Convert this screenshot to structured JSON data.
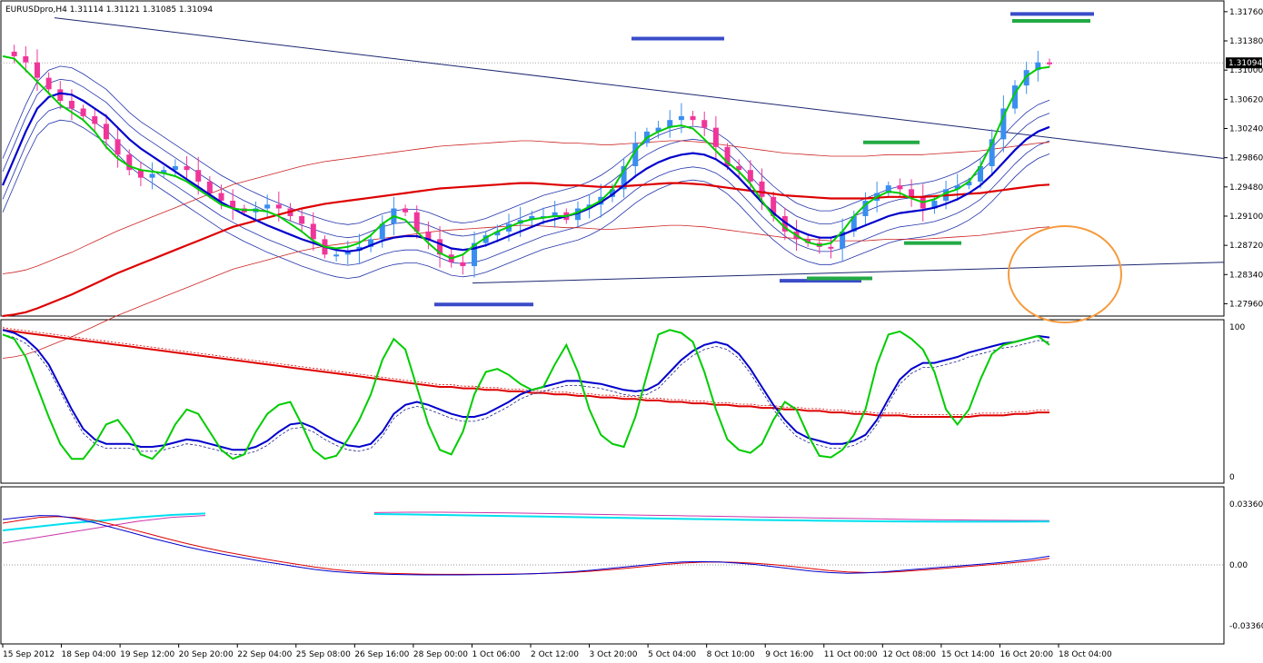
{
  "chart_data": [
    {
      "panel": "price",
      "type": "candlestick",
      "title": "EURUSDpro,H4  1.31114  1.31121  1.31085  1.31094",
      "current_price_label": "1.31094",
      "y_range": [
        1.278,
        1.319
      ],
      "y_ticks": [
        "1.31760",
        "1.31380",
        "1.31000",
        "1.30620",
        "1.30240",
        "1.29860",
        "1.29480",
        "1.29100",
        "1.28720",
        "1.28340",
        "1.27960"
      ],
      "x_tick_labels": [
        "15 Sep 2012",
        "18 Sep 04:00",
        "19 Sep 12:00",
        "20 Sep 20:00",
        "22 Sep 04:00",
        "25 Sep 08:00",
        "26 Sep 16:00",
        "28 Sep 00:00",
        "1 Oct 06:00",
        "2 Oct 12:00",
        "3 Oct 20:00",
        "5 Oct 04:00",
        "8 Oct 10:00",
        "9 Oct 16:00",
        "11 Oct 00:00",
        "12 Oct 08:00",
        "15 Oct 14:00",
        "16 Oct 20:00",
        "18 Oct 04:00"
      ],
      "close_path": [
        1.3124,
        1.3118,
        1.311,
        1.309,
        1.3075,
        1.306,
        1.305,
        1.304,
        1.303,
        1.301,
        1.299,
        1.297,
        1.296,
        1.2965,
        1.297,
        1.2975,
        1.297,
        1.2955,
        1.294,
        1.293,
        1.292,
        1.2915,
        1.292,
        1.2925,
        1.292,
        1.291,
        1.29,
        1.288,
        1.286,
        1.286,
        1.2865,
        1.287,
        1.288,
        1.29,
        1.292,
        1.2915,
        1.289,
        1.288,
        1.286,
        1.285,
        1.2845,
        1.2875,
        1.2885,
        1.289,
        1.29,
        1.2905,
        1.291,
        1.291,
        1.2915,
        1.2905,
        1.292,
        1.2925,
        1.2935,
        1.2945,
        1.2975,
        1.3005,
        1.302,
        1.3025,
        1.3035,
        1.304,
        1.3035,
        1.3025,
        1.3,
        1.2975,
        1.297,
        1.2955,
        1.2935,
        1.291,
        1.289,
        1.288,
        1.2875,
        1.287,
        1.2868,
        1.289,
        1.291,
        1.293,
        1.294,
        1.295,
        1.2945,
        1.2935,
        1.292,
        1.293,
        1.2945,
        1.295,
        1.2955,
        1.2975,
        1.301,
        1.305,
        1.308,
        1.31,
        1.311,
        1.3109
      ],
      "series": [
        {
          "name": "",
          "color": "#00cc00",
          "values": [
            1.3118,
            1.3115,
            1.31,
            1.3085,
            1.307,
            1.3055,
            1.3045,
            1.3035,
            1.302,
            1.3,
            1.2985,
            1.2975,
            1.297,
            1.2968,
            1.2966,
            1.2962,
            1.2955,
            1.2945,
            1.2935,
            1.2925,
            1.292,
            1.2918,
            1.2918,
            1.2916,
            1.291,
            1.29,
            1.289,
            1.2878,
            1.287,
            1.2868,
            1.287,
            1.2875,
            1.2885,
            1.29,
            1.291,
            1.2905,
            1.289,
            1.2875,
            1.2862,
            1.2855,
            1.286,
            1.2872,
            1.2882,
            1.289,
            1.2896,
            1.2902,
            1.2906,
            1.2908,
            1.291,
            1.291,
            1.2915,
            1.2922,
            1.293,
            1.2945,
            1.297,
            1.2995,
            1.3012,
            1.302,
            1.3026,
            1.3028,
            1.3024,
            1.301,
            1.2995,
            1.298,
            1.2968,
            1.2952,
            1.293,
            1.291,
            1.2895,
            1.2885,
            1.2876,
            1.2872,
            1.2875,
            1.289,
            1.291,
            1.2925,
            1.2935,
            1.2942,
            1.294,
            1.2933,
            1.2928,
            1.2932,
            1.294,
            1.2945,
            1.2955,
            1.2975,
            1.3005,
            1.304,
            1.307,
            1.3092,
            1.3102,
            1.3104
          ]
        },
        {
          "name": "",
          "color": "#0000cc",
          "values": [
            1.295,
            1.2985,
            1.302,
            1.305,
            1.3065,
            1.307,
            1.3068,
            1.306,
            1.305,
            1.304,
            1.3025,
            1.301,
            1.2998,
            1.2988,
            1.2978,
            1.2968,
            1.2958,
            1.2948,
            1.2938,
            1.2928,
            1.292,
            1.2912,
            1.2905,
            1.2898,
            1.2892,
            1.2886,
            1.288,
            1.2875,
            1.287,
            1.2866,
            1.2864,
            1.2866,
            1.2872,
            1.2878,
            1.2882,
            1.2884,
            1.2884,
            1.288,
            1.2874,
            1.2868,
            1.2866,
            1.2868,
            1.2872,
            1.2878,
            1.2884,
            1.289,
            1.2896,
            1.2902,
            1.2906,
            1.291,
            1.2914,
            1.292,
            1.2928,
            1.2938,
            1.295,
            1.2962,
            1.2972,
            1.298,
            1.2986,
            1.299,
            1.2992,
            1.299,
            1.2984,
            1.2974,
            1.296,
            1.2944,
            1.2928,
            1.2914,
            1.2902,
            1.2892,
            1.2886,
            1.2882,
            1.2882,
            1.2886,
            1.2892,
            1.2898,
            1.2904,
            1.291,
            1.2914,
            1.2916,
            1.2918,
            1.2921,
            1.2926,
            1.2932,
            1.294,
            1.295,
            1.2964,
            1.298,
            1.2996,
            1.301,
            1.302,
            1.3026
          ]
        },
        {
          "name": "",
          "color": "#dd0000",
          "values": [
            1.278,
            1.2782,
            1.2785,
            1.279,
            1.2796,
            1.2802,
            1.2808,
            1.2815,
            1.2822,
            1.2829,
            1.2836,
            1.2842,
            1.2848,
            1.2854,
            1.286,
            1.2866,
            1.2872,
            1.2878,
            1.2884,
            1.289,
            1.2896,
            1.29,
            1.2904,
            1.2908,
            1.2912,
            1.2916,
            1.292,
            1.2923,
            1.2926,
            1.2928,
            1.293,
            1.2932,
            1.2934,
            1.2936,
            1.2938,
            1.294,
            1.2942,
            1.2944,
            1.2946,
            1.2947,
            1.2948,
            1.2949,
            1.295,
            1.2951,
            1.2952,
            1.2953,
            1.2953,
            1.2952,
            1.2951,
            1.295,
            1.295,
            1.2949,
            1.2948,
            1.2948,
            1.2949,
            1.295,
            1.2951,
            1.2952,
            1.2953,
            1.2953,
            1.2952,
            1.2951,
            1.2949,
            1.2947,
            1.2945,
            1.2943,
            1.2941,
            1.2939,
            1.2937,
            1.2936,
            1.2935,
            1.2934,
            1.2933,
            1.2933,
            1.2933,
            1.2933,
            1.2934,
            1.2935,
            1.2935,
            1.2935,
            1.2935,
            1.2936,
            1.2937,
            1.2938,
            1.2939,
            1.294,
            1.2942,
            1.2944,
            1.2946,
            1.2948,
            1.295,
            1.2951
          ]
        }
      ]
    },
    {
      "panel": "oscillator",
      "type": "line",
      "y_range": [
        0,
        100
      ],
      "y_ticks": [
        "100",
        "0"
      ],
      "series": [
        {
          "name": "",
          "color": "#00cc00",
          "values": [
            95,
            92,
            80,
            60,
            40,
            22,
            12,
            12,
            22,
            35,
            38,
            28,
            15,
            12,
            20,
            35,
            45,
            42,
            30,
            18,
            12,
            15,
            30,
            42,
            48,
            50,
            35,
            18,
            12,
            14,
            25,
            38,
            55,
            78,
            92,
            85,
            60,
            35,
            18,
            15,
            30,
            55,
            70,
            72,
            68,
            62,
            58,
            60,
            75,
            88,
            70,
            45,
            28,
            22,
            20,
            40,
            68,
            95,
            98,
            96,
            90,
            70,
            45,
            25,
            18,
            16,
            22,
            38,
            50,
            45,
            28,
            14,
            13,
            18,
            28,
            45,
            75,
            95,
            97,
            92,
            85,
            70,
            45,
            35,
            45,
            65,
            82,
            88,
            90,
            92,
            94,
            88
          ]
        },
        {
          "name": "",
          "color": "#0000cc",
          "values": [
            98,
            96,
            92,
            85,
            75,
            60,
            45,
            32,
            25,
            22,
            22,
            22,
            20,
            20,
            21,
            23,
            25,
            24,
            22,
            20,
            18,
            18,
            20,
            24,
            30,
            35,
            36,
            33,
            28,
            24,
            21,
            20,
            22,
            30,
            42,
            48,
            50,
            48,
            45,
            42,
            40,
            40,
            42,
            46,
            50,
            55,
            58,
            60,
            62,
            64,
            64,
            63,
            62,
            60,
            58,
            57,
            58,
            62,
            70,
            78,
            84,
            88,
            90,
            88,
            82,
            72,
            60,
            48,
            38,
            30,
            26,
            24,
            22,
            22,
            24,
            28,
            38,
            52,
            65,
            72,
            76,
            76,
            78,
            80,
            83,
            85,
            87,
            89,
            90,
            92,
            94,
            93
          ]
        },
        {
          "name": "",
          "color": "#dd0000",
          "values": [
            98,
            97,
            96,
            95,
            94,
            93,
            92,
            91,
            90,
            89,
            88,
            87,
            86,
            85,
            84,
            83,
            82,
            81,
            80,
            79,
            78,
            77,
            76,
            75,
            74,
            73,
            72,
            71,
            70,
            69,
            68,
            67,
            66,
            65,
            64,
            63,
            62,
            61,
            60,
            60,
            59,
            59,
            58,
            58,
            57,
            57,
            56,
            56,
            55,
            55,
            54,
            54,
            53,
            53,
            52,
            52,
            51,
            51,
            50,
            50,
            49,
            49,
            48,
            48,
            47,
            47,
            46,
            46,
            45,
            45,
            44,
            44,
            43,
            43,
            42,
            42,
            41,
            41,
            41,
            40,
            40,
            40,
            40,
            40,
            40,
            41,
            41,
            41,
            42,
            42,
            43,
            43
          ]
        }
      ]
    },
    {
      "panel": "macd",
      "type": "line",
      "y_range": [
        -0.04,
        0.04
      ],
      "y_ticks": [
        "0.033608",
        "0.00",
        "-0.033608"
      ],
      "series": [
        {
          "name": "",
          "color": "#0000cc",
          "values": [
            0.025,
            0.0262,
            0.0272,
            0.027,
            0.0255,
            0.0232,
            0.0205,
            0.0178,
            0.015,
            0.0125,
            0.01,
            0.0078,
            0.0058,
            0.004,
            0.0022,
            0.0006,
            -0.001,
            -0.0025,
            -0.0036,
            -0.0044,
            -0.0049,
            -0.0052,
            -0.0054,
            -0.0055,
            -0.0055,
            -0.0055,
            -0.0054,
            -0.0053,
            -0.0051,
            -0.0048,
            -0.0044,
            -0.0038,
            -0.003,
            -0.002,
            -0.001,
            0.0,
            0.001,
            0.0016,
            0.0018,
            0.0016,
            0.001,
            0.0002,
            -0.001,
            -0.0022,
            -0.0034,
            -0.0042,
            -0.0046,
            -0.0044,
            -0.0038,
            -0.003,
            -0.0022,
            -0.0014,
            -0.0006,
            0.0002,
            0.001,
            0.002,
            0.0032,
            0.0048
          ]
        },
        {
          "name": "",
          "color": "#dd0000",
          "values": [
            0.023,
            0.0246,
            0.0262,
            0.0266,
            0.026,
            0.0245,
            0.0222,
            0.0196,
            0.017,
            0.0143,
            0.0118,
            0.0095,
            0.0074,
            0.0055,
            0.0037,
            0.002,
            0.0004,
            -0.0012,
            -0.0025,
            -0.0035,
            -0.0042,
            -0.0046,
            -0.0049,
            -0.0051,
            -0.0052,
            -0.0052,
            -0.0052,
            -0.0051,
            -0.005,
            -0.0048,
            -0.0045,
            -0.0041,
            -0.0035,
            -0.0027,
            -0.0018,
            -0.0008,
            0.0002,
            0.001,
            0.0015,
            0.0016,
            0.0014,
            0.0009,
            0.0001,
            -0.0009,
            -0.002,
            -0.0031,
            -0.0039,
            -0.0042,
            -0.0041,
            -0.0036,
            -0.0029,
            -0.0021,
            -0.0013,
            -0.0005,
            0.0003,
            0.0012,
            0.0022,
            0.0036
          ]
        },
        {
          "name": "",
          "color": "#00e0ee",
          "values": [
            0.019,
            0.021,
            0.023,
            0.0245,
            0.0262,
            0.0275,
            0.0283,
            null,
            null,
            null,
            null,
            0.028,
            0.0278,
            0.0275,
            0.0272,
            0.0269,
            0.0266,
            0.0263,
            0.026,
            0.0257,
            0.0254,
            0.0251,
            0.0248,
            0.0246,
            0.0244,
            0.0242,
            0.024,
            0.0239,
            0.0238,
            0.0238,
            0.0238,
            0.0239
          ]
        },
        {
          "name": "",
          "color": "#cc33aa",
          "values": [
            0.012,
            0.015,
            0.018,
            0.021,
            0.024,
            0.0262,
            0.0272,
            null,
            null,
            null,
            null,
            0.0288,
            0.029,
            0.029,
            0.0288,
            0.0286,
            0.0283,
            0.028,
            0.0277,
            0.0274,
            0.0271,
            0.0268,
            0.0265,
            0.0262,
            0.0259,
            0.0256,
            0.0253,
            0.025,
            0.0248,
            0.0246,
            0.0245,
            0.0244
          ]
        }
      ]
    }
  ],
  "colors": {
    "bull_candle": "#3a8ef0",
    "bear_candle": "#f0359a",
    "circle": "#f59a3c",
    "marker_blue": "#3a4cc8",
    "marker_green": "#22aa44"
  }
}
